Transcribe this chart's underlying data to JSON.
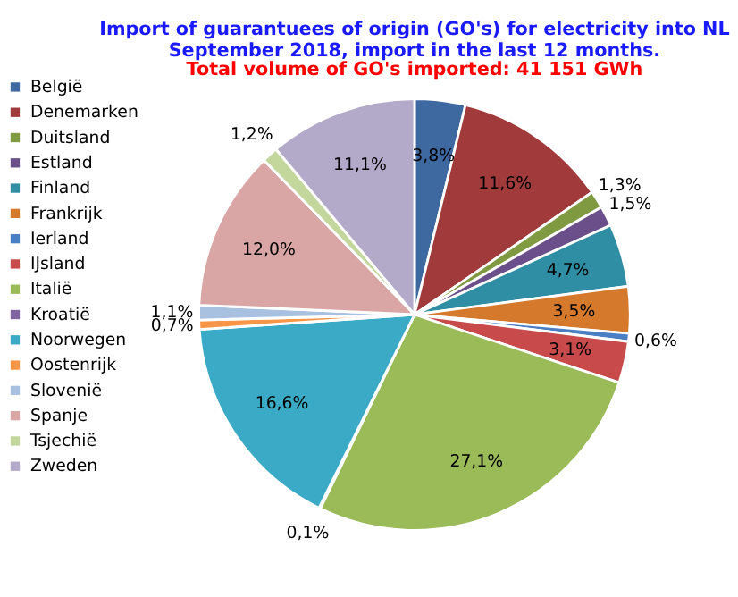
{
  "chart_data": {
    "type": "pie",
    "title": [
      "Import of guarantuees of origin (GO's) for electricity into NL",
      "September 2018, import in the last 12 months."
    ],
    "subtitle": "Total volume of GO's imported: 41 151 GWh",
    "categories": [
      "België",
      "Denemarken",
      "Duitsland",
      "Estland",
      "Finland",
      "Frankrijk",
      "Ierland",
      "IJsland",
      "Italië",
      "Kroatië",
      "Noorwegen",
      "Oostenrijk",
      "Slovenië",
      "Spanje",
      "Tsjechië",
      "Zweden"
    ],
    "values": [
      3.8,
      11.6,
      1.3,
      1.5,
      4.7,
      3.5,
      0.6,
      3.1,
      27.1,
      0.1,
      16.6,
      0.7,
      1.1,
      12.0,
      1.2,
      11.1
    ],
    "value_labels": [
      "3,8%",
      "11,6%",
      "1,3%",
      "1,5%",
      "4,7%",
      "3,5%",
      "0,6%",
      "3,1%",
      "27,1%",
      "0,1%",
      "16,6%",
      "0,7%",
      "1,1%",
      "12,0%",
      "1,2%",
      "11,1%"
    ],
    "colors": [
      "#3d68a0",
      "#a13b3b",
      "#7f9a41",
      "#6a4f8a",
      "#2f8ea3",
      "#d57a2c",
      "#4a7fc4",
      "#c84a4a",
      "#9bbb59",
      "#8064a2",
      "#3aaac6",
      "#f79646",
      "#a9c1e0",
      "#d9a5a5",
      "#c3d69b",
      "#b3a9c9"
    ],
    "legend": "left"
  }
}
